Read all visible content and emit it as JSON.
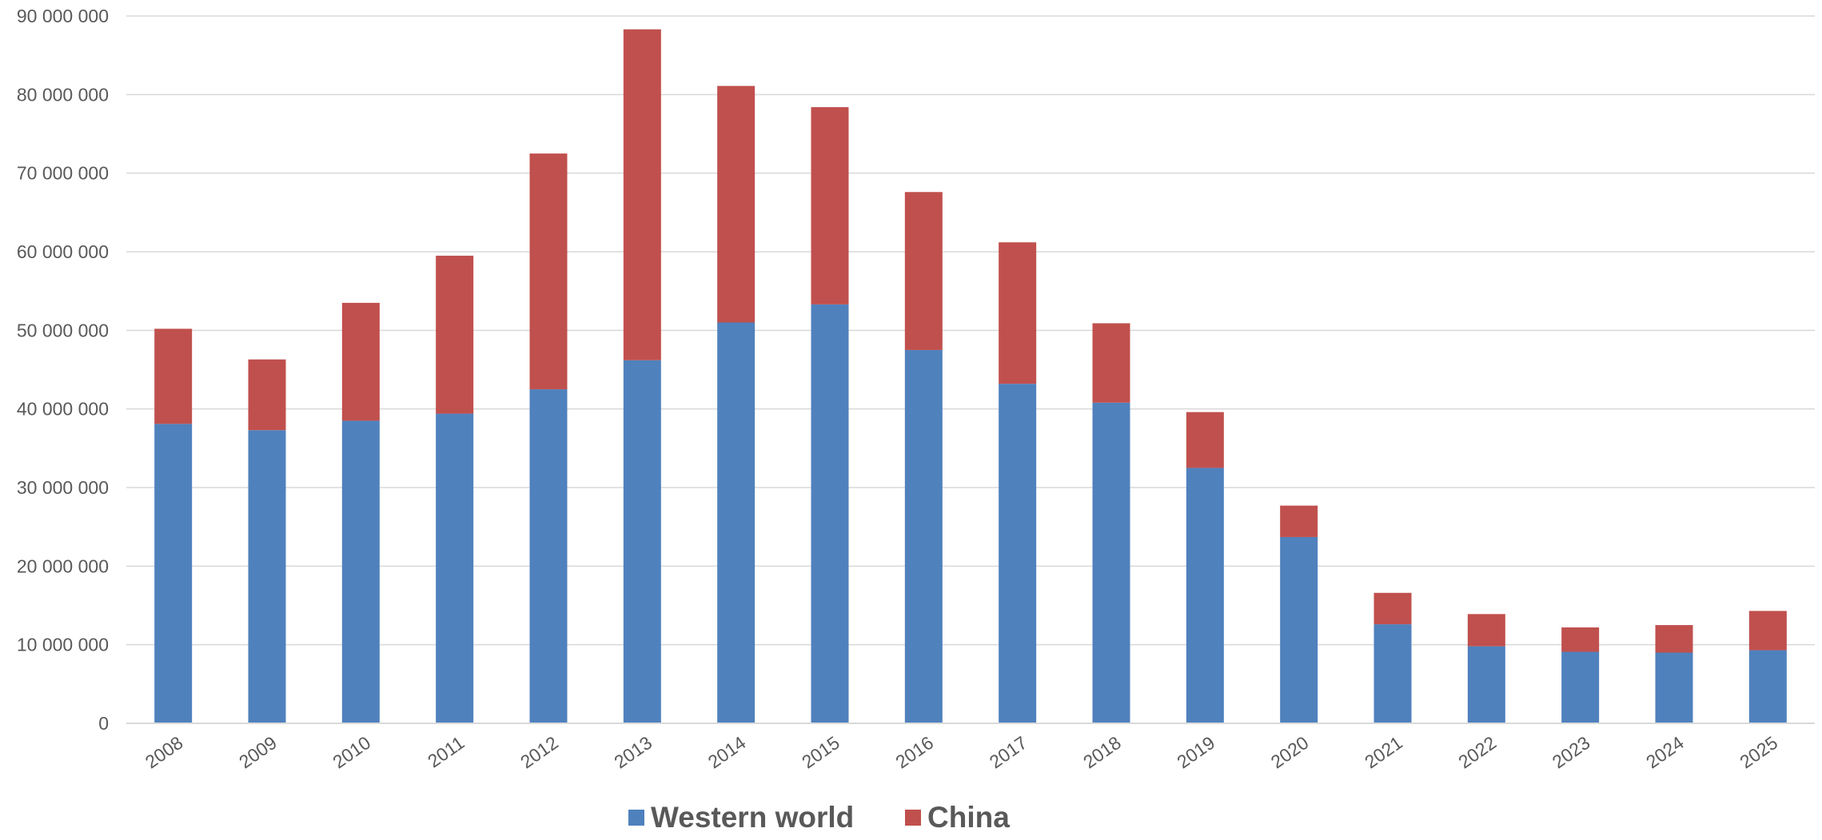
{
  "chart_data": {
    "type": "bar",
    "stacked": true,
    "title": "",
    "xlabel": "",
    "ylabel": "",
    "categories": [
      "2008",
      "2009",
      "2010",
      "2011",
      "2012",
      "2013",
      "2014",
      "2015",
      "2016",
      "2017",
      "2018",
      "2019",
      "2020",
      "2021",
      "2022",
      "2023",
      "2024",
      "2025"
    ],
    "series": [
      {
        "name": "Western world",
        "color": "#4f81bd",
        "values": [
          38100000,
          37300000,
          38500000,
          39400000,
          42500000,
          46200000,
          51000000,
          53300000,
          47500000,
          43200000,
          40800000,
          32500000,
          23700000,
          12600000,
          9800000,
          9100000,
          9000000,
          9300000
        ]
      },
      {
        "name": "China",
        "color": "#c0504d",
        "values": [
          12100000,
          9000000,
          15000000,
          20100000,
          30000000,
          42100000,
          30100000,
          25100000,
          20100000,
          18000000,
          10100000,
          7100000,
          4000000,
          4000000,
          4100000,
          3100000,
          3500000,
          5000000
        ]
      }
    ],
    "ylim": [
      0,
      90000000
    ],
    "yticks": [
      0,
      10000000,
      20000000,
      30000000,
      40000000,
      50000000,
      60000000,
      70000000,
      80000000,
      90000000
    ],
    "ytick_labels": [
      "0",
      "10 000 000",
      "20 000 000",
      "30 000 000",
      "40 000 000",
      "50 000 000",
      "60 000 000",
      "70 000 000",
      "80 000 000",
      "90 000 000"
    ],
    "grid": true,
    "legend_position": "bottom-center",
    "legend": [
      "Western world",
      "China"
    ]
  }
}
